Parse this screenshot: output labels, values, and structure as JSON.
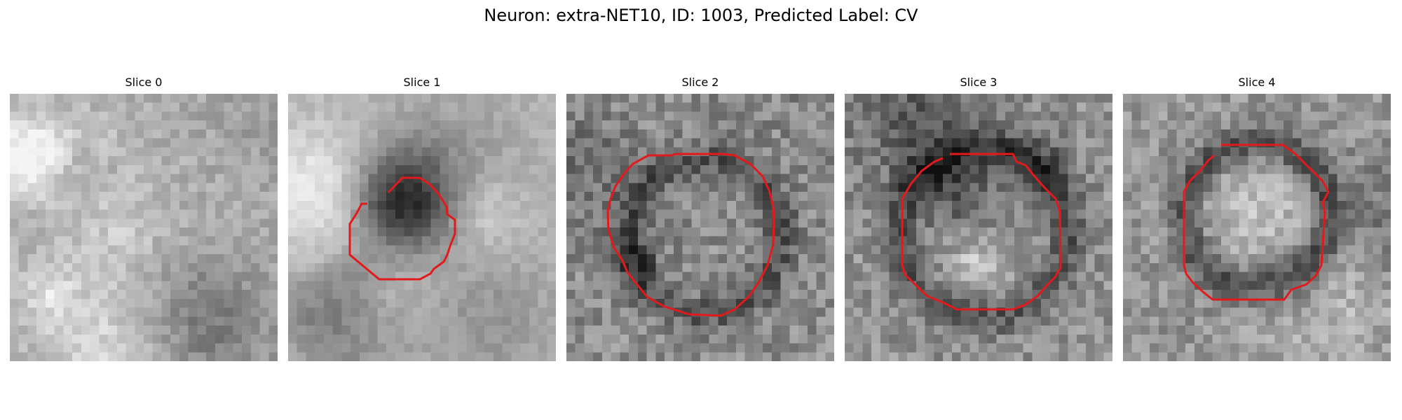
{
  "figure": {
    "title": "Neuron: extra-NET10, ID: 1003, Predicted Label: CV"
  },
  "panels": [
    {
      "title": "Slice 0",
      "has_contour": false
    },
    {
      "title": "Slice 1",
      "has_contour": true
    },
    {
      "title": "Slice 2",
      "has_contour": true
    },
    {
      "title": "Slice 3",
      "has_contour": true
    },
    {
      "title": "Slice 4",
      "has_contour": true
    }
  ],
  "colors": {
    "contour": "#e31a1c",
    "background": "#ffffff"
  }
}
